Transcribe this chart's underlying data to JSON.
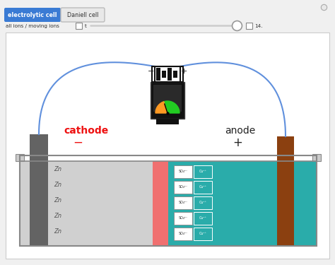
{
  "bg_color": "#f0f0f0",
  "panel_bg": "#ffffff",
  "title_buttons": [
    "electrolytic cell",
    "Daniell cell"
  ],
  "btn_active_color": "#3a7bd4",
  "btn_text_color": "#ffffff",
  "btn_inactive_color": "#e8e8e8",
  "slider_label": "all ions / moving ions",
  "slider_value": "t",
  "slider_end": "14.",
  "cathode_label": "cathode",
  "cathode_sign": "−",
  "anode_label": "anode",
  "anode_sign": "+",
  "cathode_color": "#ee1111",
  "zn_electrode_color": "#636363",
  "cu_electrode_color": "#8B4010",
  "left_solution_color": "#d0d0d0",
  "right_solution_color": "#2aacaa",
  "salt_bridge_color": "#f07070",
  "wire_color": "#6090dd",
  "battery_color": "#111111",
  "meter_bg": "#111111",
  "meter_face": "#1a1a1a",
  "meter_green": "#22cc22",
  "meter_orange": "#ff9922",
  "ion_box_bg": "#ffffff",
  "ion_box_border": "#999999",
  "so4_label": "SO₄²⁻",
  "cu_label": "Cu²⁺",
  "zn_label": "Zn",
  "trough_border": "#888888",
  "wire_connect_color": "#333333"
}
